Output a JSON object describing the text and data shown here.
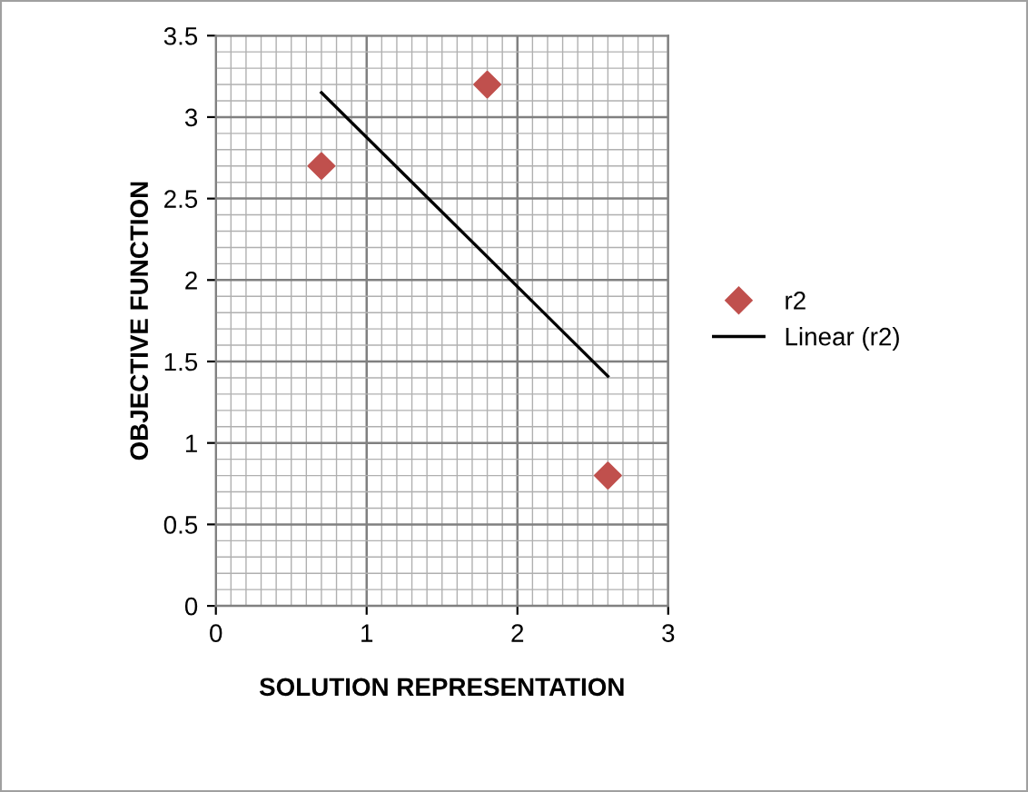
{
  "chart_data": {
    "type": "scatter",
    "xlabel": "SOLUTION REPRESENTATION",
    "ylabel": "OBJECTIVE FUNCTION",
    "series": [
      {
        "name": "r2",
        "color": "#c0504d",
        "marker": "diamond",
        "x": [
          0.7,
          1.8,
          2.6
        ],
        "values": [
          2.7,
          3.2,
          0.8
        ]
      },
      {
        "name": "Linear (r2)",
        "type": "line",
        "color": "#000000",
        "marker": "none",
        "line_style": "solid",
        "x": [
          0.7,
          2.6
        ],
        "values": [
          3.15,
          1.41
        ]
      }
    ],
    "xlim": [
      0,
      3
    ],
    "ylim": [
      0,
      3.5
    ],
    "xticks": [
      0,
      {
        "value": 0.1,
        "label": null
      },
      {
        "value": 0.2,
        "label": null
      },
      {
        "value": 0.3,
        "label": null
      },
      {
        "value": 0.4,
        "label": null
      },
      {
        "value": 0.5,
        "label": null
      },
      {
        "value": 0.6,
        "label": null
      },
      {
        "value": 0.7,
        "label": null
      },
      {
        "value": 0.8,
        "label": null
      },
      {
        "value": 0.9,
        "label": null
      },
      1,
      {
        "value": 1.1,
        "label": null
      },
      {
        "value": 1.2,
        "label": null
      },
      {
        "value": 1.3,
        "label": null
      },
      {
        "value": 1.4,
        "label": null
      },
      {
        "value": 1.5,
        "label": null
      },
      {
        "value": 1.6,
        "label": null
      },
      {
        "value": 1.7,
        "label": null
      },
      {
        "value": 1.8,
        "label": null
      },
      {
        "value": 1.9,
        "label": null
      },
      2,
      {
        "value": 2.1,
        "label": null
      },
      {
        "value": 2.2,
        "label": null
      },
      {
        "value": 2.3,
        "label": null
      },
      {
        "value": 2.4,
        "label": null
      },
      {
        "value": 2.5,
        "label": null
      },
      {
        "value": 2.6,
        "label": null
      },
      {
        "value": 2.7,
        "label": null
      },
      {
        "value": 2.8,
        "label": null
      },
      {
        "value": 2.9,
        "label": null
      },
      3
    ],
    "yticks": [
      0,
      {
        "value": 0.1,
        "label": null
      },
      {
        "value": 0.2,
        "label": null
      },
      {
        "value": 0.3,
        "label": null
      },
      {
        "value": 0.4,
        "label": null
      },
      0.5,
      {
        "value": 0.6,
        "label": null
      },
      {
        "value": 0.7,
        "label": null
      },
      {
        "value": 0.8,
        "label": null
      },
      {
        "value": 0.9,
        "label": null
      },
      1,
      {
        "value": 1.1,
        "label": null
      },
      {
        "value": 1.2,
        "label": null
      },
      {
        "value": 1.3,
        "label": null
      },
      {
        "value": 1.4,
        "label": null
      },
      1.5,
      {
        "value": 1.6,
        "label": null
      },
      {
        "value": 1.7,
        "label": null
      },
      {
        "value": 1.8,
        "label": null
      },
      {
        "value": 1.9,
        "label": null
      },
      2,
      {
        "value": 2.1,
        "label": null
      },
      {
        "value": 2.2,
        "label": null
      },
      {
        "value": 2.3,
        "label": null
      },
      {
        "value": 2.4,
        "label": null
      },
      2.5,
      {
        "value": 2.6,
        "label": null
      },
      {
        "value": 2.7,
        "label": null
      },
      {
        "value": 2.8,
        "label": null
      },
      {
        "value": 2.9,
        "label": null
      },
      3,
      {
        "value": 3.1,
        "label": null
      },
      {
        "value": 3.2,
        "label": null
      },
      {
        "value": 3.3,
        "label": null
      },
      {
        "value": 3.4,
        "label": null
      },
      3.5
    ],
    "grid": true,
    "legend": "right"
  }
}
